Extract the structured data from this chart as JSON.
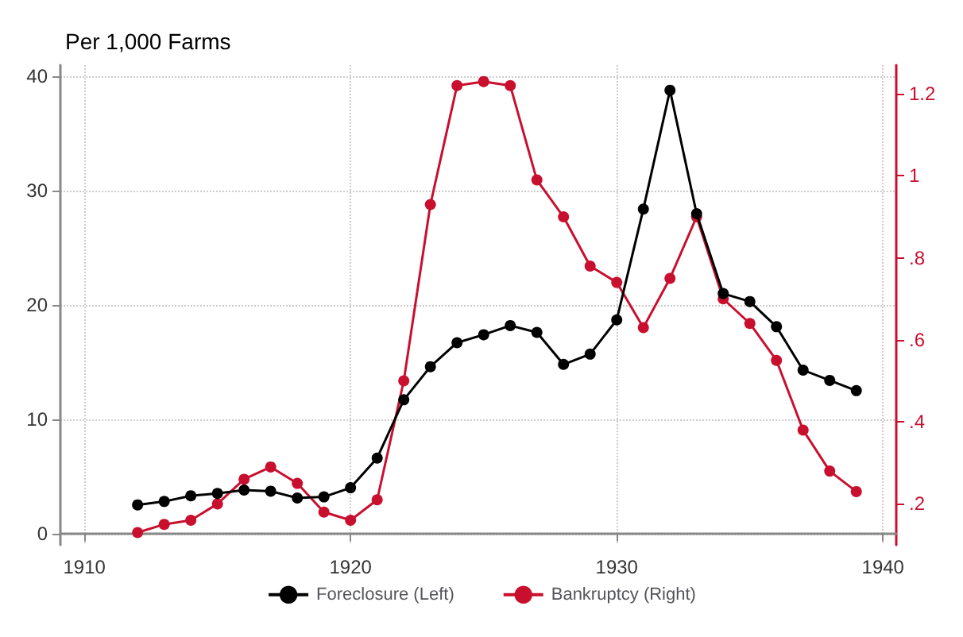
{
  "chart_data": {
    "type": "line",
    "title": "Per 1,000 Farms",
    "x": [
      1912,
      1913,
      1914,
      1915,
      1916,
      1917,
      1918,
      1919,
      1920,
      1921,
      1922,
      1923,
      1924,
      1925,
      1926,
      1927,
      1928,
      1929,
      1930,
      1931,
      1932,
      1933,
      1934,
      1935,
      1936,
      1937,
      1938,
      1939
    ],
    "series": [
      {
        "name": "Foreclosure (Left)",
        "color": "#000000",
        "values": [
          2.5,
          2.8,
          3.3,
          3.5,
          3.8,
          3.7,
          3.1,
          3.2,
          4.0,
          6.6,
          11.7,
          14.6,
          16.7,
          17.4,
          18.2,
          17.6,
          14.8,
          15.7,
          18.7,
          28.4,
          38.8,
          28.0,
          21.0,
          20.3,
          18.1,
          14.3,
          13.4,
          12.5
        ]
      },
      {
        "name": "Bankruptcy (Right)",
        "color": "#c8102e",
        "axis": "y2",
        "values": [
          0.13,
          0.15,
          0.16,
          0.2,
          0.26,
          0.29,
          0.25,
          0.18,
          0.16,
          0.21,
          0.5,
          0.93,
          1.22,
          1.23,
          1.22,
          0.99,
          0.9,
          0.78,
          0.74,
          0.63,
          0.75,
          0.9,
          0.7,
          0.64,
          0.55,
          0.38,
          0.28,
          0.23
        ]
      }
    ],
    "xlim": [
      1909.1,
      1940.5
    ],
    "xticks": [
      1910,
      1920,
      1930,
      1940
    ],
    "ylim": [
      -1,
      41
    ],
    "yticks": [
      0,
      10,
      20,
      30,
      40
    ],
    "y2lim": [
      0.1,
      1.27
    ],
    "y2ticks": [
      {
        "value": 0.2,
        "label": ".2"
      },
      {
        "value": 0.4,
        "label": ".4"
      },
      {
        "value": 0.6,
        "label": ".6"
      },
      {
        "value": 0.8,
        "label": ".8"
      },
      {
        "value": 1,
        "label": "1"
      },
      {
        "value": 1.2,
        "label": "1.2"
      }
    ],
    "grid": true,
    "legend": "bottom",
    "marker": "circle",
    "line_style": "solid"
  }
}
